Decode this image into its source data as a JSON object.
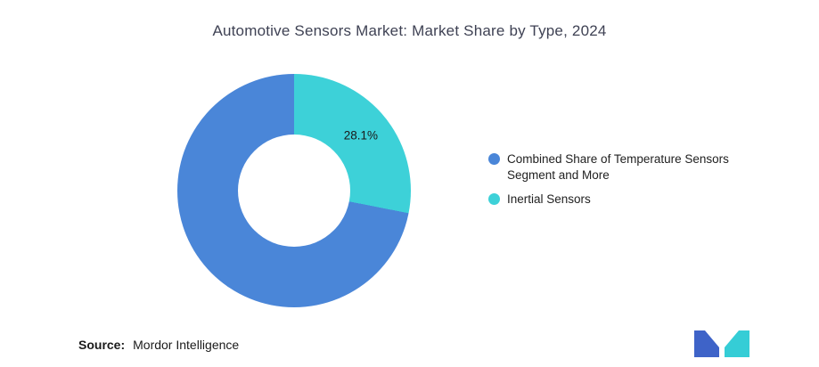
{
  "chart_data": {
    "type": "pie",
    "donut": true,
    "title": "Automotive Sensors Market: Market Share by Type, 2024",
    "background": "#ffffff",
    "hole_radius_ratio": 0.48,
    "legend_position": "right",
    "slices_clockwise_from_top": [
      {
        "name": "Inertial Sensors",
        "value": 28.1,
        "color": "#3DD1D8",
        "data_label": "28.1%"
      },
      {
        "name": "Combined Share of Temperature Sensors Segment and More",
        "value": 71.9,
        "color": "#4A86D8",
        "data_label": ""
      }
    ],
    "legend": [
      {
        "label": "Combined Share of Temperature Sensors Segment and More",
        "color": "#4A86D8"
      },
      {
        "label": "Inertial Sensors",
        "color": "#3DD1D8"
      }
    ]
  },
  "footer": {
    "source_label": "Source:",
    "source_value": "Mordor Intelligence"
  },
  "logo": {
    "name": "mordor-intelligence-logo",
    "colors": {
      "blue": "#3E63C8",
      "teal": "#35CDD6"
    }
  }
}
